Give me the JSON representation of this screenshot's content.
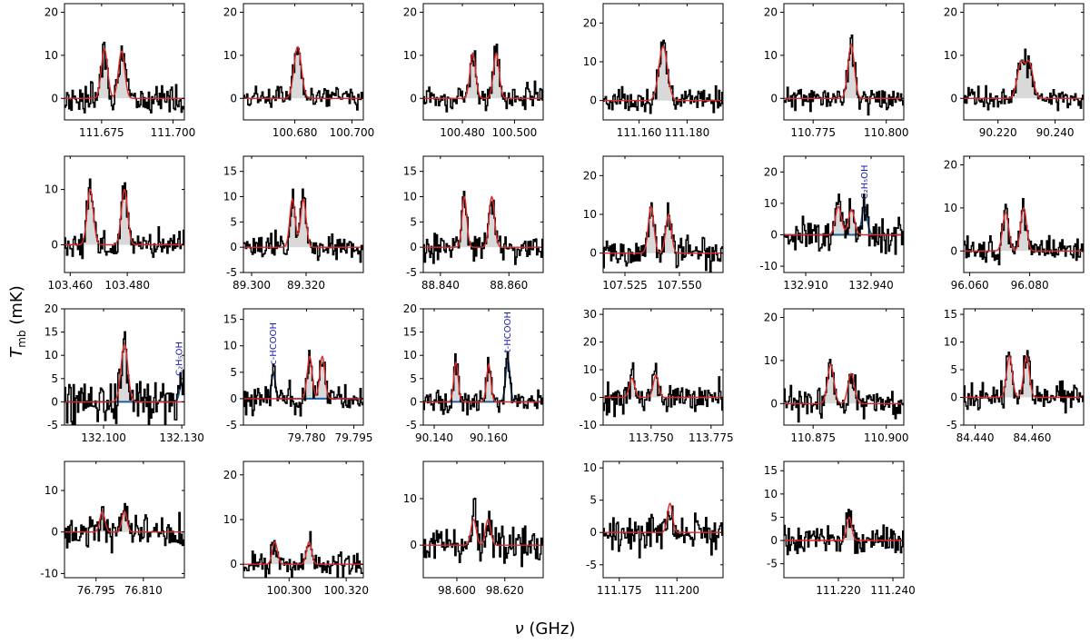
{
  "figure": {
    "ylabel_main": "T",
    "ylabel_sub": "mb",
    "ylabel_unit": " (mK)",
    "xlabel_symbol": "ν",
    "xlabel_unit": " (GHz)",
    "colors": {
      "observed": "#000000",
      "model": "#e0292b",
      "fill": "#d9d9d9",
      "blend": "#1f5f9e",
      "annotation": "#1a1aa8"
    }
  },
  "chart_data": [
    {
      "type": "line",
      "ylim": [
        -5,
        22
      ],
      "yticks": [
        0,
        10,
        20
      ],
      "xlim": [
        111.662,
        111.704
      ],
      "xticks": [
        111.675,
        111.7
      ],
      "xticklabels": [
        "111.675",
        "111.700"
      ],
      "lines": [
        {
          "c": 111.676,
          "a": 11.5,
          "s": 0.0011
        },
        {
          "c": 111.682,
          "a": 11,
          "s": 0.0011
        }
      ],
      "noise": 2.5,
      "gray": true
    },
    {
      "type": "line",
      "ylim": [
        -5,
        22
      ],
      "yticks": [
        0,
        10,
        20
      ],
      "xlim": [
        100.662,
        100.704
      ],
      "xticks": [
        100.68,
        100.7
      ],
      "xticklabels": [
        "100.680",
        "100.700"
      ],
      "lines": [
        {
          "c": 100.681,
          "a": 12,
          "s": 0.0013
        }
      ],
      "noise": 1.8,
      "gray": true
    },
    {
      "type": "line",
      "ylim": [
        -5,
        22
      ],
      "yticks": [
        0,
        10,
        20
      ],
      "xlim": [
        100.465,
        100.511
      ],
      "xticks": [
        100.48,
        100.5
      ],
      "xticklabels": [
        "100.480",
        "100.500"
      ],
      "lines": [
        {
          "c": 100.484,
          "a": 10.5,
          "s": 0.0011
        },
        {
          "c": 100.493,
          "a": 10.5,
          "s": 0.0011
        }
      ],
      "noise": 2.2,
      "gray": true
    },
    {
      "type": "line",
      "ylim": [
        -5,
        25
      ],
      "yticks": [
        0,
        10,
        20
      ],
      "xlim": [
        111.145,
        111.195
      ],
      "xticks": [
        111.16,
        111.18
      ],
      "xticklabels": [
        "111.160",
        "111.180"
      ],
      "lines": [
        {
          "c": 111.17,
          "a": 14,
          "s": 0.0018
        }
      ],
      "noise": 2.2,
      "gray": true
    },
    {
      "type": "line",
      "ylim": [
        -5,
        22
      ],
      "yticks": [
        0,
        10,
        20
      ],
      "xlim": [
        110.765,
        110.806
      ],
      "xticks": [
        110.775,
        110.8
      ],
      "xticklabels": [
        "110.775",
        "110.800"
      ],
      "lines": [
        {
          "c": 110.788,
          "a": 12.5,
          "s": 0.0011
        }
      ],
      "noise": 2.0,
      "gray": true
    },
    {
      "type": "line",
      "ylim": [
        -5,
        22
      ],
      "yticks": [
        0,
        10,
        20
      ],
      "xlim": [
        90.208,
        90.25
      ],
      "xticks": [
        90.22,
        90.24
      ],
      "xticklabels": [
        "90.220",
        "90.240"
      ],
      "lines": [
        {
          "c": 90.228,
          "a": 8,
          "s": 0.0013
        },
        {
          "c": 90.231,
          "a": 8,
          "s": 0.0013
        }
      ],
      "noise": 2.0,
      "gray": true
    },
    {
      "type": "line",
      "ylim": [
        -5,
        16
      ],
      "yticks": [
        0,
        10
      ],
      "xlim": [
        103.458,
        103.5
      ],
      "xticks": [
        103.46,
        103.48
      ],
      "xticklabels": [
        "103.460",
        "103.480"
      ],
      "lines": [
        {
          "c": 103.467,
          "a": 10,
          "s": 0.0011
        },
        {
          "c": 103.479,
          "a": 10,
          "s": 0.0011
        }
      ],
      "noise": 1.8,
      "gray": true
    },
    {
      "type": "line",
      "ylim": [
        -5,
        18
      ],
      "yticks": [
        -5,
        0,
        5,
        10,
        15
      ],
      "xlim": [
        89.297,
        89.341
      ],
      "xticks": [
        89.3,
        89.32
      ],
      "xticklabels": [
        "89.300",
        "89.320"
      ],
      "lines": [
        {
          "c": 89.315,
          "a": 9.5,
          "s": 0.001
        },
        {
          "c": 89.319,
          "a": 9.5,
          "s": 0.001
        }
      ],
      "noise": 1.8,
      "gray": true
    },
    {
      "type": "line",
      "ylim": [
        -5,
        18
      ],
      "yticks": [
        -5,
        0,
        5,
        10,
        15
      ],
      "xlim": [
        88.835,
        88.87
      ],
      "xticks": [
        88.84,
        88.86
      ],
      "xticklabels": [
        "88.840",
        "88.860"
      ],
      "lines": [
        {
          "c": 88.847,
          "a": 10,
          "s": 0.0007
        },
        {
          "c": 88.855,
          "a": 10,
          "s": 0.0008
        }
      ],
      "noise": 1.8,
      "gray": true
    },
    {
      "type": "line",
      "ylim": [
        -5,
        25
      ],
      "yticks": [
        0,
        10,
        20
      ],
      "xlim": [
        107.515,
        107.57
      ],
      "xticks": [
        107.525,
        107.55
      ],
      "xticklabels": [
        "107.525",
        "107.550"
      ],
      "lines": [
        {
          "c": 107.537,
          "a": 12,
          "s": 0.0013
        },
        {
          "c": 107.545,
          "a": 10,
          "s": 0.0013
        }
      ],
      "noise": 2.8,
      "gray": true
    },
    {
      "type": "line",
      "ylim": [
        -12,
        25
      ],
      "yticks": [
        -10,
        0,
        10,
        20
      ],
      "xlim": [
        132.9,
        132.955
      ],
      "xticks": [
        132.91,
        132.94
      ],
      "xticklabels": [
        "132.910",
        "132.940"
      ],
      "lines": [
        {
          "c": 132.925,
          "a": 9,
          "s": 0.0014
        },
        {
          "c": 132.931,
          "a": 8,
          "s": 0.0014
        }
      ],
      "blend": {
        "c": 132.937,
        "a": 9,
        "s": 0.0012
      },
      "noise": 3.8,
      "gray": true,
      "annotation": {
        "label": "C₂H₅OH",
        "x": 132.937
      }
    },
    {
      "type": "line",
      "ylim": [
        -5,
        22
      ],
      "yticks": [
        0,
        10,
        20
      ],
      "xlim": [
        96.058,
        96.098
      ],
      "xticks": [
        96.06,
        96.08
      ],
      "xticklabels": [
        "96.060",
        "96.080"
      ],
      "lines": [
        {
          "c": 96.072,
          "a": 9,
          "s": 0.001
        },
        {
          "c": 96.078,
          "a": 10,
          "s": 0.001
        }
      ],
      "noise": 2.2,
      "gray": true
    },
    {
      "type": "line",
      "ylim": [
        -5,
        20
      ],
      "yticks": [
        -5,
        0,
        5,
        10,
        15,
        20
      ],
      "xlim": [
        132.085,
        132.131
      ],
      "xticks": [
        132.1,
        132.13
      ],
      "xticklabels": [
        "132.100",
        "132.130"
      ],
      "lines": [
        {
          "c": 132.108,
          "a": 12.5,
          "s": 0.0013
        }
      ],
      "blend": {
        "c": 132.13,
        "a": 4,
        "s": 0.0009
      },
      "noise": 3.8,
      "gray": true,
      "annotation": {
        "label": "C₂H₅OH",
        "x": 132.129
      }
    },
    {
      "type": "line",
      "ylim": [
        -5,
        17
      ],
      "yticks": [
        -5,
        0,
        5,
        10,
        15
      ],
      "xlim": [
        79.76,
        79.798
      ],
      "xticks": [
        79.78,
        79.795
      ],
      "xticklabels": [
        "79.780",
        "79.795"
      ],
      "lines": [
        {
          "c": 79.781,
          "a": 8,
          "s": 0.0008
        },
        {
          "c": 79.785,
          "a": 8,
          "s": 0.0008
        }
      ],
      "blend": {
        "c": 79.7695,
        "a": 5,
        "s": 0.0006
      },
      "noise": 1.8,
      "gray": true,
      "annotation": {
        "label": "c-HCOOH",
        "x": 79.7695
      }
    },
    {
      "type": "line",
      "ylim": [
        -5,
        20
      ],
      "yticks": [
        -5,
        0,
        5,
        10,
        15,
        20
      ],
      "xlim": [
        90.136,
        90.18
      ],
      "xticks": [
        90.14,
        90.16
      ],
      "xticklabels": [
        "90.140",
        "90.160"
      ],
      "lines": [
        {
          "c": 90.148,
          "a": 8.5,
          "s": 0.0008
        },
        {
          "c": 90.16,
          "a": 8,
          "s": 0.0008
        }
      ],
      "blend": {
        "c": 90.167,
        "a": 9,
        "s": 0.0008
      },
      "noise": 1.6,
      "gray": true,
      "annotation": {
        "label": "t-HCOOH",
        "x": 90.167
      }
    },
    {
      "type": "line",
      "ylim": [
        -10,
        32
      ],
      "yticks": [
        -10,
        0,
        10,
        20,
        30
      ],
      "xlim": [
        113.73,
        113.78
      ],
      "xticks": [
        113.75,
        113.775
      ],
      "xticklabels": [
        "113.750",
        "113.775"
      ],
      "lines": [
        {
          "c": 113.742,
          "a": 7,
          "s": 0.0011
        },
        {
          "c": 113.752,
          "a": 8,
          "s": 0.0011
        }
      ],
      "noise": 3.8,
      "gray": true
    },
    {
      "type": "line",
      "ylim": [
        -5,
        22
      ],
      "yticks": [
        0,
        10,
        20
      ],
      "xlim": [
        110.865,
        110.906
      ],
      "xticks": [
        110.875,
        110.9
      ],
      "xticklabels": [
        "110.875",
        "110.900"
      ],
      "lines": [
        {
          "c": 110.881,
          "a": 9,
          "s": 0.0011
        },
        {
          "c": 110.888,
          "a": 7,
          "s": 0.0011
        }
      ],
      "noise": 2.5,
      "gray": true
    },
    {
      "type": "line",
      "ylim": [
        -5,
        16
      ],
      "yticks": [
        -5,
        0,
        5,
        10,
        15
      ],
      "xlim": [
        84.436,
        84.478
      ],
      "xticks": [
        84.44,
        84.46
      ],
      "xticklabels": [
        "84.440",
        "84.460"
      ],
      "lines": [
        {
          "c": 84.452,
          "a": 7.5,
          "s": 0.001
        },
        {
          "c": 84.458,
          "a": 7.5,
          "s": 0.001
        }
      ],
      "noise": 1.8,
      "gray": true
    },
    {
      "type": "line",
      "ylim": [
        -11,
        17
      ],
      "yticks": [
        -10,
        0,
        10
      ],
      "xlim": [
        76.785,
        76.823
      ],
      "xticks": [
        76.795,
        76.81
      ],
      "xticklabels": [
        "76.795",
        "76.810"
      ],
      "lines": [
        {
          "c": 76.797,
          "a": 5,
          "s": 0.0008
        },
        {
          "c": 76.804,
          "a": 5,
          "s": 0.0008
        }
      ],
      "noise": 2.8,
      "gray": true
    },
    {
      "type": "line",
      "ylim": [
        -3,
        23
      ],
      "yticks": [
        0,
        10,
        20
      ],
      "xlim": [
        100.284,
        100.326
      ],
      "xticks": [
        100.3,
        100.32
      ],
      "xticklabels": [
        "100.300",
        "100.320"
      ],
      "lines": [
        {
          "c": 100.295,
          "a": 5,
          "s": 0.0009
        },
        {
          "c": 100.307,
          "a": 5,
          "s": 0.0009
        }
      ],
      "noise": 2.0,
      "gray": true
    },
    {
      "type": "line",
      "ylim": [
        -7,
        18
      ],
      "yticks": [
        0,
        10
      ],
      "xlim": [
        98.586,
        98.636
      ],
      "xticks": [
        98.6,
        98.62
      ],
      "xticklabels": [
        "98.600",
        "98.620"
      ],
      "lines": [
        {
          "c": 98.607,
          "a": 5.5,
          "s": 0.0011
        },
        {
          "c": 98.613,
          "a": 5.5,
          "s": 0.0011
        }
      ],
      "noise": 2.8,
      "gray": false
    },
    {
      "type": "line",
      "ylim": [
        -7,
        11
      ],
      "yticks": [
        -5,
        0,
        5,
        10
      ],
      "xlim": [
        111.168,
        111.22
      ],
      "xticks": [
        111.175,
        111.2
      ],
      "xticklabels": [
        "111.175",
        "111.200"
      ],
      "lines": [
        {
          "c": 111.197,
          "a": 4.5,
          "s": 0.0011
        }
      ],
      "noise": 2.2,
      "gray": false
    },
    {
      "type": "line",
      "ylim": [
        -8,
        17
      ],
      "yticks": [
        -5,
        0,
        5,
        10,
        15
      ],
      "xlim": [
        111.2,
        111.244
      ],
      "xticks": [
        111.22,
        111.24
      ],
      "xticklabels": [
        "111.220",
        "111.240"
      ],
      "lines": [
        {
          "c": 111.224,
          "a": 5,
          "s": 0.0009
        }
      ],
      "noise": 2.2,
      "gray": true
    }
  ]
}
